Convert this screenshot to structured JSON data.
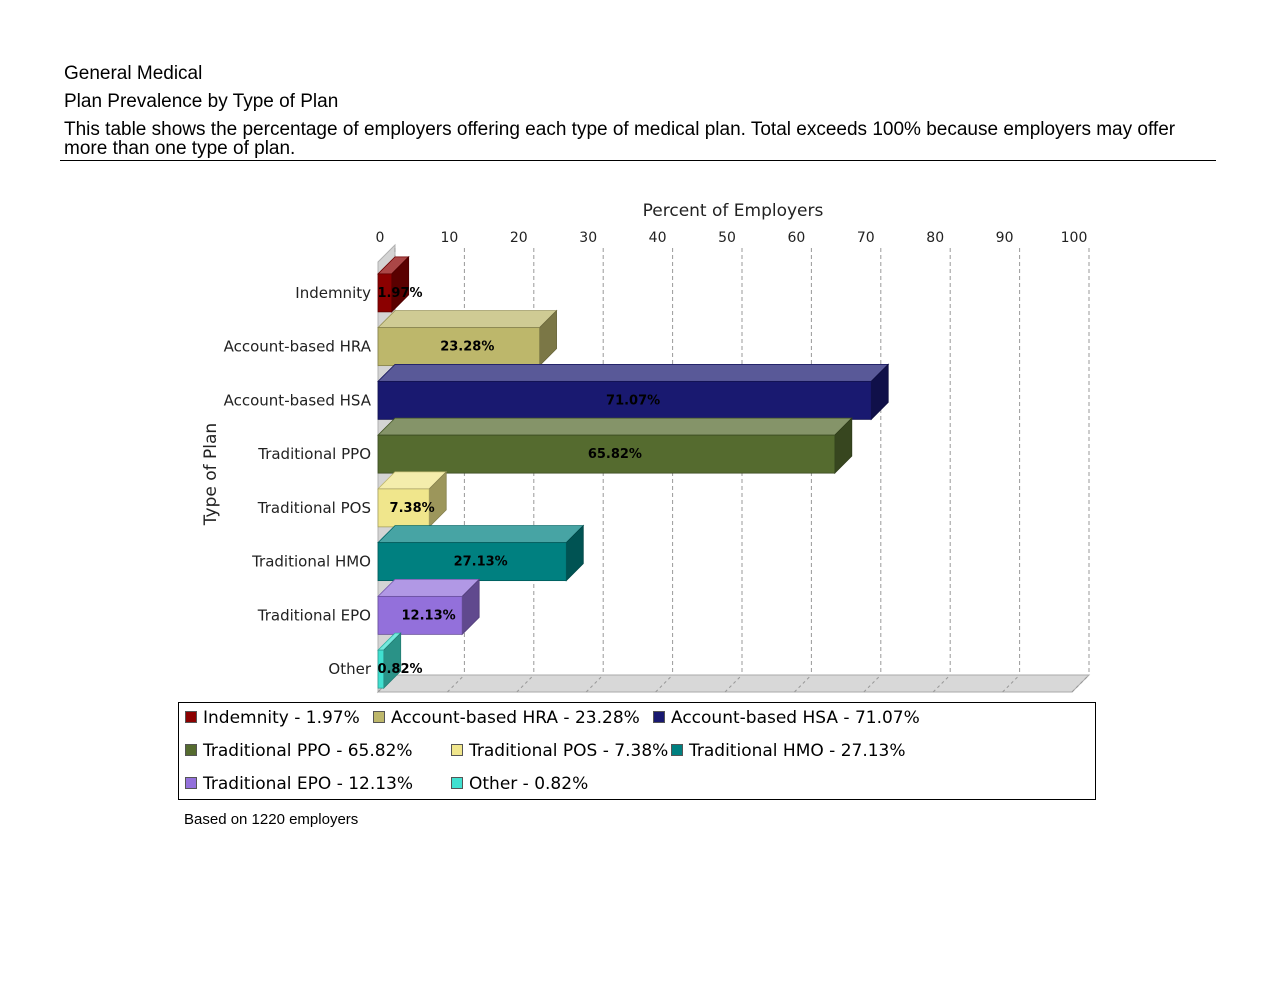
{
  "header": {
    "section": "General Medical",
    "title": "Plan Prevalence by Type of Plan",
    "description": "This table shows the percentage of employers offering each type of medical plan. Total exceeds 100% because employers may offer more than one type of plan."
  },
  "chart_data": {
    "type": "bar",
    "orientation": "horizontal",
    "style": "3d",
    "xlabel": "Percent of Employers",
    "ylabel": "Type of Plan",
    "xlim": [
      0,
      100
    ],
    "xticks": [
      0,
      10,
      20,
      30,
      40,
      50,
      60,
      70,
      80,
      90,
      100
    ],
    "grid": true,
    "axis_position": "top",
    "categories": [
      "Indemnity",
      "Account-based HRA",
      "Account-based HSA",
      "Traditional PPO",
      "Traditional POS",
      "Traditional HMO",
      "Traditional EPO",
      "Other"
    ],
    "values": [
      1.97,
      23.28,
      71.07,
      65.82,
      7.38,
      27.13,
      12.13,
      0.82
    ],
    "data_labels": [
      "1.97%",
      "23.28%",
      "71.07%",
      "65.82%",
      "7.38%",
      "27.13%",
      "12.13%",
      "0.82%"
    ],
    "colors": [
      "#8b0000",
      "#bdb76b",
      "#191970",
      "#556b2f",
      "#f0e68c",
      "#008080",
      "#9370db",
      "#40e0d0"
    ],
    "legend": {
      "position": "bottom",
      "entries": [
        "Indemnity - 1.97%",
        "Account-based HRA - 23.28%",
        "Account-based HSA - 71.07%",
        "Traditional PPO - 65.82%",
        "Traditional POS - 7.38%",
        "Traditional HMO - 27.13%",
        "Traditional EPO - 12.13%",
        "Other - 0.82%"
      ]
    }
  },
  "footnote": "Based on 1220 employers"
}
